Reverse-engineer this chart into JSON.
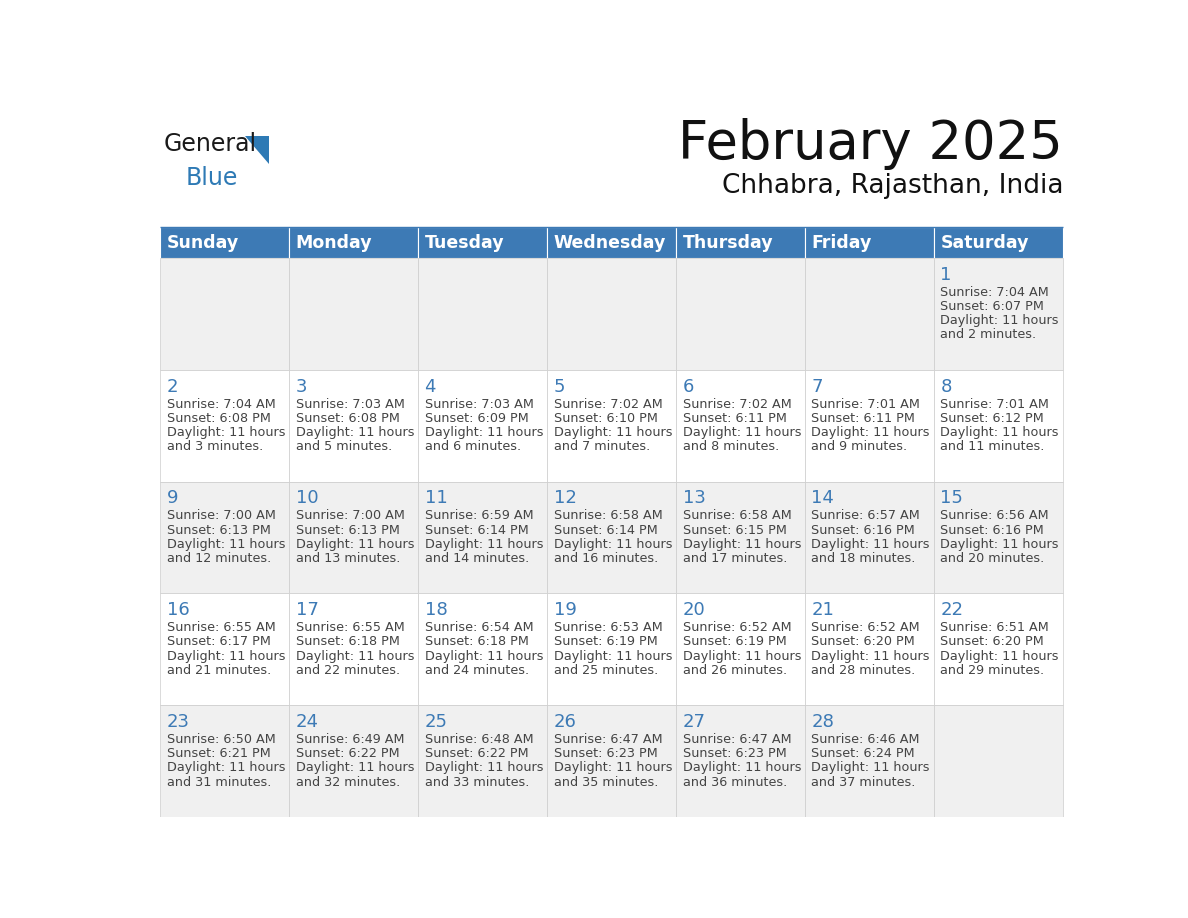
{
  "title": "February 2025",
  "subtitle": "Chhabra, Rajasthan, India",
  "header_bg": "#3D7AB5",
  "header_text_color": "#FFFFFF",
  "days_of_week": [
    "Sunday",
    "Monday",
    "Tuesday",
    "Wednesday",
    "Thursday",
    "Friday",
    "Saturday"
  ],
  "row_bg_even": "#F0F0F0",
  "row_bg_odd": "#FFFFFF",
  "cell_text_color": "#444444",
  "day_num_color": "#3D7AB5",
  "grid_color": "#CCCCCC",
  "logo_black": "#1A1A1A",
  "logo_blue": "#2E7AB5",
  "triangle_color": "#2E7AB5",
  "calendar": [
    [
      {
        "day": null,
        "sunrise": null,
        "sunset": null,
        "daylight": null
      },
      {
        "day": null,
        "sunrise": null,
        "sunset": null,
        "daylight": null
      },
      {
        "day": null,
        "sunrise": null,
        "sunset": null,
        "daylight": null
      },
      {
        "day": null,
        "sunrise": null,
        "sunset": null,
        "daylight": null
      },
      {
        "day": null,
        "sunrise": null,
        "sunset": null,
        "daylight": null
      },
      {
        "day": null,
        "sunrise": null,
        "sunset": null,
        "daylight": null
      },
      {
        "day": 1,
        "sunrise": "7:04 AM",
        "sunset": "6:07 PM",
        "daylight": "11 hours and 2 minutes."
      }
    ],
    [
      {
        "day": 2,
        "sunrise": "7:04 AM",
        "sunset": "6:08 PM",
        "daylight": "11 hours and 3 minutes."
      },
      {
        "day": 3,
        "sunrise": "7:03 AM",
        "sunset": "6:08 PM",
        "daylight": "11 hours and 5 minutes."
      },
      {
        "day": 4,
        "sunrise": "7:03 AM",
        "sunset": "6:09 PM",
        "daylight": "11 hours and 6 minutes."
      },
      {
        "day": 5,
        "sunrise": "7:02 AM",
        "sunset": "6:10 PM",
        "daylight": "11 hours and 7 minutes."
      },
      {
        "day": 6,
        "sunrise": "7:02 AM",
        "sunset": "6:11 PM",
        "daylight": "11 hours and 8 minutes."
      },
      {
        "day": 7,
        "sunrise": "7:01 AM",
        "sunset": "6:11 PM",
        "daylight": "11 hours and 9 minutes."
      },
      {
        "day": 8,
        "sunrise": "7:01 AM",
        "sunset": "6:12 PM",
        "daylight": "11 hours and 11 minutes."
      }
    ],
    [
      {
        "day": 9,
        "sunrise": "7:00 AM",
        "sunset": "6:13 PM",
        "daylight": "11 hours and 12 minutes."
      },
      {
        "day": 10,
        "sunrise": "7:00 AM",
        "sunset": "6:13 PM",
        "daylight": "11 hours and 13 minutes."
      },
      {
        "day": 11,
        "sunrise": "6:59 AM",
        "sunset": "6:14 PM",
        "daylight": "11 hours and 14 minutes."
      },
      {
        "day": 12,
        "sunrise": "6:58 AM",
        "sunset": "6:14 PM",
        "daylight": "11 hours and 16 minutes."
      },
      {
        "day": 13,
        "sunrise": "6:58 AM",
        "sunset": "6:15 PM",
        "daylight": "11 hours and 17 minutes."
      },
      {
        "day": 14,
        "sunrise": "6:57 AM",
        "sunset": "6:16 PM",
        "daylight": "11 hours and 18 minutes."
      },
      {
        "day": 15,
        "sunrise": "6:56 AM",
        "sunset": "6:16 PM",
        "daylight": "11 hours and 20 minutes."
      }
    ],
    [
      {
        "day": 16,
        "sunrise": "6:55 AM",
        "sunset": "6:17 PM",
        "daylight": "11 hours and 21 minutes."
      },
      {
        "day": 17,
        "sunrise": "6:55 AM",
        "sunset": "6:18 PM",
        "daylight": "11 hours and 22 minutes."
      },
      {
        "day": 18,
        "sunrise": "6:54 AM",
        "sunset": "6:18 PM",
        "daylight": "11 hours and 24 minutes."
      },
      {
        "day": 19,
        "sunrise": "6:53 AM",
        "sunset": "6:19 PM",
        "daylight": "11 hours and 25 minutes."
      },
      {
        "day": 20,
        "sunrise": "6:52 AM",
        "sunset": "6:19 PM",
        "daylight": "11 hours and 26 minutes."
      },
      {
        "day": 21,
        "sunrise": "6:52 AM",
        "sunset": "6:20 PM",
        "daylight": "11 hours and 28 minutes."
      },
      {
        "day": 22,
        "sunrise": "6:51 AM",
        "sunset": "6:20 PM",
        "daylight": "11 hours and 29 minutes."
      }
    ],
    [
      {
        "day": 23,
        "sunrise": "6:50 AM",
        "sunset": "6:21 PM",
        "daylight": "11 hours and 31 minutes."
      },
      {
        "day": 24,
        "sunrise": "6:49 AM",
        "sunset": "6:22 PM",
        "daylight": "11 hours and 32 minutes."
      },
      {
        "day": 25,
        "sunrise": "6:48 AM",
        "sunset": "6:22 PM",
        "daylight": "11 hours and 33 minutes."
      },
      {
        "day": 26,
        "sunrise": "6:47 AM",
        "sunset": "6:23 PM",
        "daylight": "11 hours and 35 minutes."
      },
      {
        "day": 27,
        "sunrise": "6:47 AM",
        "sunset": "6:23 PM",
        "daylight": "11 hours and 36 minutes."
      },
      {
        "day": 28,
        "sunrise": "6:46 AM",
        "sunset": "6:24 PM",
        "daylight": "11 hours and 37 minutes."
      },
      {
        "day": null,
        "sunrise": null,
        "sunset": null,
        "daylight": null
      }
    ]
  ]
}
